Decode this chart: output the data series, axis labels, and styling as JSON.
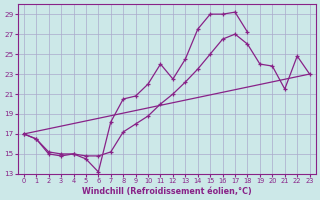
{
  "background_color": "#cce8e8",
  "grid_color": "#aaaacc",
  "line_color": "#882288",
  "title": "Windchill (Refroidissement éolien,°C)",
  "xlim": [
    -0.5,
    23.5
  ],
  "ylim": [
    13,
    30
  ],
  "yticks": [
    13,
    15,
    17,
    19,
    21,
    23,
    25,
    27,
    29
  ],
  "xticks": [
    0,
    1,
    2,
    3,
    4,
    5,
    6,
    7,
    8,
    9,
    10,
    11,
    12,
    13,
    14,
    15,
    16,
    17,
    18,
    19,
    20,
    21,
    22,
    23
  ],
  "line1_x": [
    0,
    1,
    2,
    3,
    4,
    5,
    6,
    7,
    8,
    9,
    10,
    11,
    12,
    13,
    14,
    15,
    16,
    17,
    18
  ],
  "line1_y": [
    17.0,
    16.5,
    15.0,
    14.8,
    15.0,
    14.5,
    13.2,
    18.2,
    20.5,
    20.8,
    22.0,
    24.0,
    22.5,
    24.5,
    27.5,
    29.0,
    29.0,
    29.2,
    27.2
  ],
  "line2_x": [
    0,
    1,
    2,
    3,
    4,
    5,
    6,
    7,
    8,
    9,
    10,
    11,
    12,
    13,
    14,
    15,
    16,
    17,
    18,
    19,
    20,
    21,
    22,
    23
  ],
  "line2_y": [
    17.0,
    16.5,
    15.2,
    15.0,
    15.0,
    14.8,
    14.8,
    15.2,
    17.2,
    18.0,
    18.8,
    20.0,
    21.0,
    22.2,
    23.5,
    25.0,
    26.5,
    27.0,
    26.0,
    24.0,
    23.8,
    21.5,
    24.8,
    23.0
  ],
  "line3_x": [
    0,
    23
  ],
  "line3_y": [
    17.0,
    23.0
  ]
}
